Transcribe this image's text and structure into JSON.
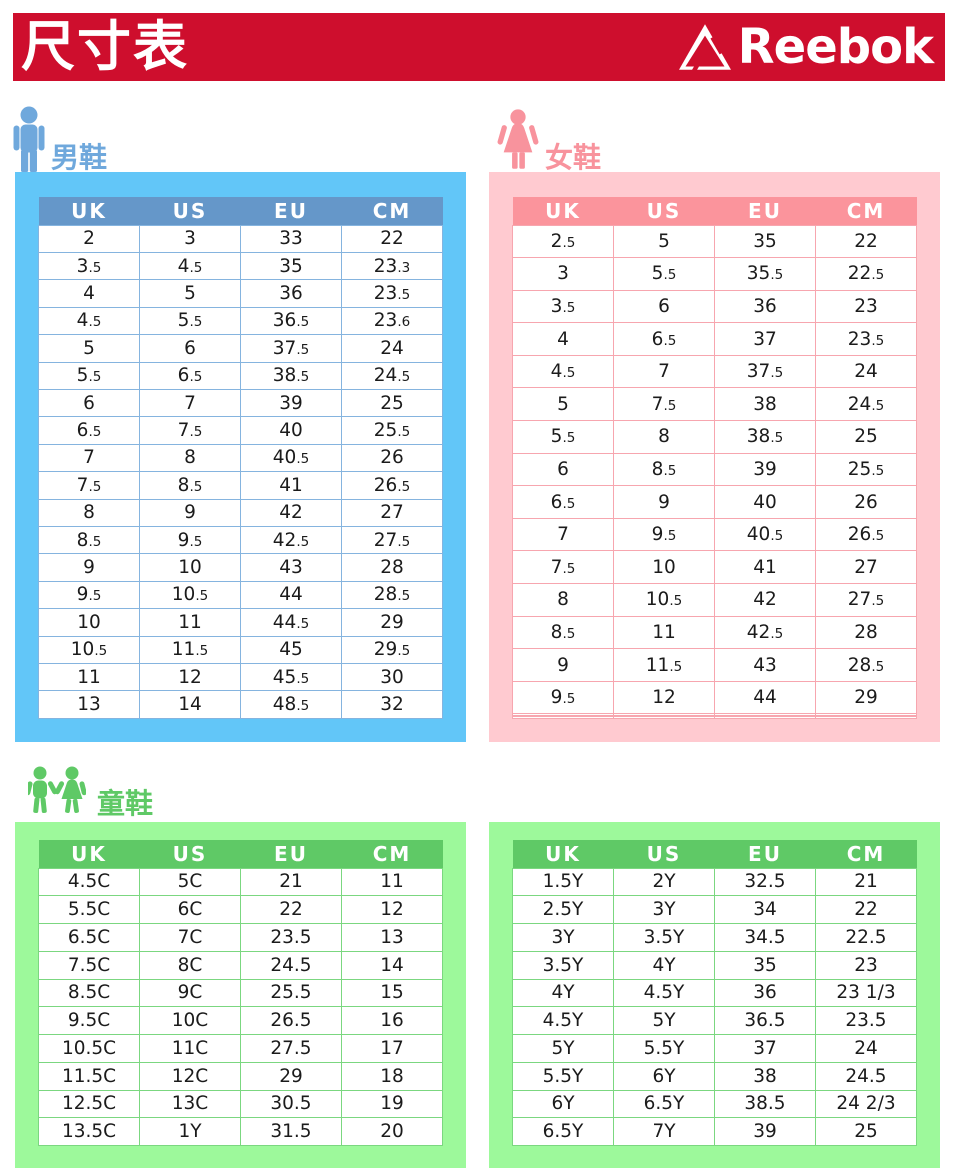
{
  "header": {
    "title": "尺寸表",
    "brand": "Reebok",
    "banner_color": "#CE0E2D"
  },
  "sections": {
    "men": {
      "label": "男鞋",
      "accent_color": "#6FA8DC",
      "panel_color": "#62C6F8",
      "header_row_color": "#6597C9",
      "table": {
        "columns": [
          "UK",
          "US",
          "EU",
          "CM"
        ],
        "small_decimals": true,
        "rows": [
          [
            "2",
            "3",
            "33",
            "22"
          ],
          [
            "3.5",
            "4.5",
            "35",
            "23.3"
          ],
          [
            "4",
            "5",
            "36",
            "23.5"
          ],
          [
            "4.5",
            "5.5",
            "36.5",
            "23.6"
          ],
          [
            "5",
            "6",
            "37.5",
            "24"
          ],
          [
            "5.5",
            "6.5",
            "38.5",
            "24.5"
          ],
          [
            "6",
            "7",
            "39",
            "25"
          ],
          [
            "6.5",
            "7.5",
            "40",
            "25.5"
          ],
          [
            "7",
            "8",
            "40.5",
            "26"
          ],
          [
            "7.5",
            "8.5",
            "41",
            "26.5"
          ],
          [
            "8",
            "9",
            "42",
            "27"
          ],
          [
            "8.5",
            "9.5",
            "42.5",
            "27.5"
          ],
          [
            "9",
            "10",
            "43",
            "28"
          ],
          [
            "9.5",
            "10.5",
            "44",
            "28.5"
          ],
          [
            "10",
            "11",
            "44.5",
            "29"
          ],
          [
            "10.5",
            "11.5",
            "45",
            "29.5"
          ],
          [
            "11",
            "12",
            "45.5",
            "30"
          ],
          [
            "13",
            "14",
            "48.5",
            "32"
          ]
        ]
      }
    },
    "women": {
      "label": "女鞋",
      "accent_color": "#F8939D",
      "panel_color": "#FFCAD0",
      "header_row_color": "#FB949C",
      "table": {
        "columns": [
          "UK",
          "US",
          "EU",
          "CM"
        ],
        "small_decimals": true,
        "rows": [
          [
            "2.5",
            "5",
            "35",
            "22"
          ],
          [
            "3",
            "5.5",
            "35.5",
            "22.5"
          ],
          [
            "3.5",
            "6",
            "36",
            "23"
          ],
          [
            "4",
            "6.5",
            "37",
            "23.5"
          ],
          [
            "4.5",
            "7",
            "37.5",
            "24"
          ],
          [
            "5",
            "7.5",
            "38",
            "24.5"
          ],
          [
            "5.5",
            "8",
            "38.5",
            "25"
          ],
          [
            "6",
            "8.5",
            "39",
            "25.5"
          ],
          [
            "6.5",
            "9",
            "40",
            "26"
          ],
          [
            "7",
            "9.5",
            "40.5",
            "26.5"
          ],
          [
            "7.5",
            "10",
            "41",
            "27"
          ],
          [
            "8",
            "10.5",
            "42",
            "27.5"
          ],
          [
            "8.5",
            "11",
            "42.5",
            "28"
          ],
          [
            "9",
            "11.5",
            "43",
            "28.5"
          ],
          [
            "9.5",
            "12",
            "44",
            "29"
          ],
          [
            "",
            "",
            "",
            ""
          ],
          [
            "",
            "",
            "",
            ""
          ],
          [
            "",
            "",
            "",
            ""
          ]
        ]
      }
    },
    "kids": {
      "label": "童鞋",
      "accent_color": "#5FC966",
      "panel_color": "#9DF99B",
      "header_row_color": "#5FC966",
      "left_table": {
        "columns": [
          "UK",
          "US",
          "EU",
          "CM"
        ],
        "small_decimals": false,
        "rows": [
          [
            "4.5C",
            "5C",
            "21",
            "11"
          ],
          [
            "5.5C",
            "6C",
            "22",
            "12"
          ],
          [
            "6.5C",
            "7C",
            "23.5",
            "13"
          ],
          [
            "7.5C",
            "8C",
            "24.5",
            "14"
          ],
          [
            "8.5C",
            "9C",
            "25.5",
            "15"
          ],
          [
            "9.5C",
            "10C",
            "26.5",
            "16"
          ],
          [
            "10.5C",
            "11C",
            "27.5",
            "17"
          ],
          [
            "11.5C",
            "12C",
            "29",
            "18"
          ],
          [
            "12.5C",
            "13C",
            "30.5",
            "19"
          ],
          [
            "13.5C",
            "1Y",
            "31.5",
            "20"
          ]
        ]
      },
      "right_table": {
        "columns": [
          "UK",
          "US",
          "EU",
          "CM"
        ],
        "small_decimals": false,
        "rows": [
          [
            "1.5Y",
            "2Y",
            "32.5",
            "21"
          ],
          [
            "2.5Y",
            "3Y",
            "34",
            "22"
          ],
          [
            "3Y",
            "3.5Y",
            "34.5",
            "22.5"
          ],
          [
            "3.5Y",
            "4Y",
            "35",
            "23"
          ],
          [
            "4Y",
            "4.5Y",
            "36",
            "23 1/3"
          ],
          [
            "4.5Y",
            "5Y",
            "36.5",
            "23.5"
          ],
          [
            "5Y",
            "5.5Y",
            "37",
            "24"
          ],
          [
            "5.5Y",
            "6Y",
            "38",
            "24.5"
          ],
          [
            "6Y",
            "6.5Y",
            "38.5",
            "24 2/3"
          ],
          [
            "6.5Y",
            "7Y",
            "39",
            "25"
          ]
        ]
      }
    }
  }
}
